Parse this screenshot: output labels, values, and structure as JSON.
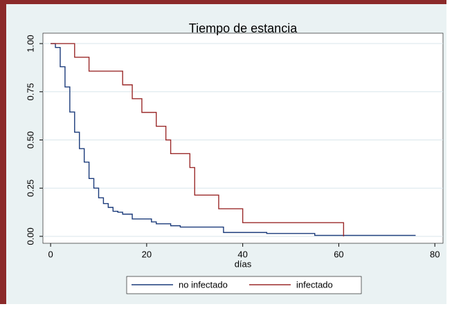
{
  "chart_data": {
    "type": "step",
    "title": "Tiempo de estancia",
    "x_label": "días",
    "xlim": [
      -1.6,
      81.7
    ],
    "ylim": [
      -0.036,
      1.054
    ],
    "xticks": [
      0,
      20,
      40,
      60,
      80
    ],
    "yticks": [
      {
        "value": 0,
        "label": "0.00"
      },
      {
        "value": 0.25,
        "label": "0.25"
      },
      {
        "value": 0.5,
        "label": "0.50"
      },
      {
        "value": 0.75,
        "label": "0.75"
      },
      {
        "value": 1,
        "label": "1.00"
      }
    ],
    "grid": true,
    "legend": "bottom",
    "series": [
      {
        "name": "no infectado",
        "color": "#1a3a7a",
        "x": [
          0,
          1,
          2,
          3,
          4,
          5,
          6,
          7,
          8,
          9,
          10,
          11,
          12,
          13,
          14,
          15,
          17,
          21,
          22,
          25,
          27,
          36,
          45,
          55,
          76
        ],
        "values": [
          1,
          0.98,
          0.88,
          0.775,
          0.645,
          0.54,
          0.455,
          0.385,
          0.3,
          0.25,
          0.2,
          0.17,
          0.15,
          0.13,
          0.125,
          0.115,
          0.09,
          0.075,
          0.065,
          0.055,
          0.048,
          0.02,
          0.015,
          0.005,
          0.005
        ]
      },
      {
        "name": "infectado",
        "color": "#9b2a2a",
        "x": [
          0,
          5,
          8,
          15,
          17,
          19,
          22,
          24,
          25,
          29,
          30,
          35,
          40,
          61
        ],
        "values": [
          1,
          0.929,
          0.857,
          0.786,
          0.714,
          0.643,
          0.571,
          0.5,
          0.429,
          0.357,
          0.214,
          0.143,
          0.071,
          0
        ]
      }
    ]
  }
}
